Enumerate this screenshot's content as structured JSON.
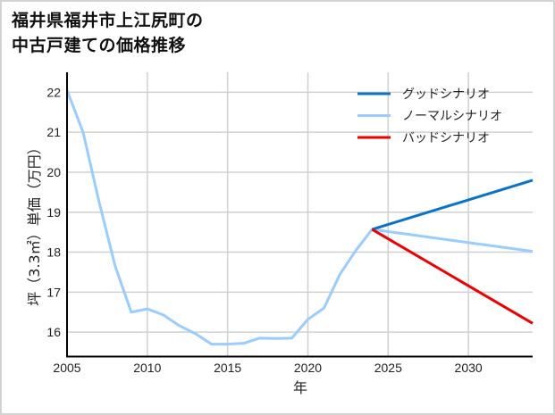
{
  "title": {
    "line1": "福井県福井市上江尻町の",
    "line2": "中古戸建ての価格推移"
  },
  "chart_data": {
    "type": "line",
    "title": "福井県福井市上江尻町の中古戸建ての価格推移",
    "xlabel": "年",
    "ylabel": "坪（3.3㎡）単価（万円）",
    "xlim": [
      2005,
      2034
    ],
    "ylim": [
      15.4,
      22.5
    ],
    "xticks": [
      2005,
      2010,
      2015,
      2020,
      2025,
      2030
    ],
    "yticks": [
      16,
      17,
      18,
      19,
      20,
      21,
      22
    ],
    "grid": true,
    "legend_position": "upper right",
    "series": [
      {
        "name": "グッドシナリオ",
        "color": "#0a72c8",
        "x": [
          2024,
          2034
        ],
        "values": [
          18.57,
          19.8
        ]
      },
      {
        "name": "ノーマルシナリオ",
        "color": "#99ccff",
        "x": [
          2005,
          2006,
          2007,
          2008,
          2009,
          2010,
          2011,
          2012,
          2013,
          2014,
          2015,
          2016,
          2017,
          2018,
          2019,
          2020,
          2021,
          2022,
          2023,
          2024,
          2034
        ],
        "values": [
          22.05,
          21.0,
          19.25,
          17.65,
          16.5,
          16.58,
          16.43,
          16.16,
          15.96,
          15.7,
          15.7,
          15.72,
          15.85,
          15.84,
          15.85,
          16.32,
          16.6,
          17.45,
          18.05,
          18.57,
          18.02
        ]
      },
      {
        "name": "バッドシナリオ",
        "color": "#ee0000",
        "x": [
          2024,
          2034
        ],
        "values": [
          18.57,
          16.22
        ]
      }
    ]
  },
  "legend": {
    "items": [
      {
        "label": "グッドシナリオ",
        "color": "#0a72c8"
      },
      {
        "label": "ノーマルシナリオ",
        "color": "#99ccff"
      },
      {
        "label": "バッドシナリオ",
        "color": "#ee0000"
      }
    ]
  },
  "axes": {
    "xlabel": "年",
    "ylabel": "坪（3.3㎡）単価（万円）"
  }
}
